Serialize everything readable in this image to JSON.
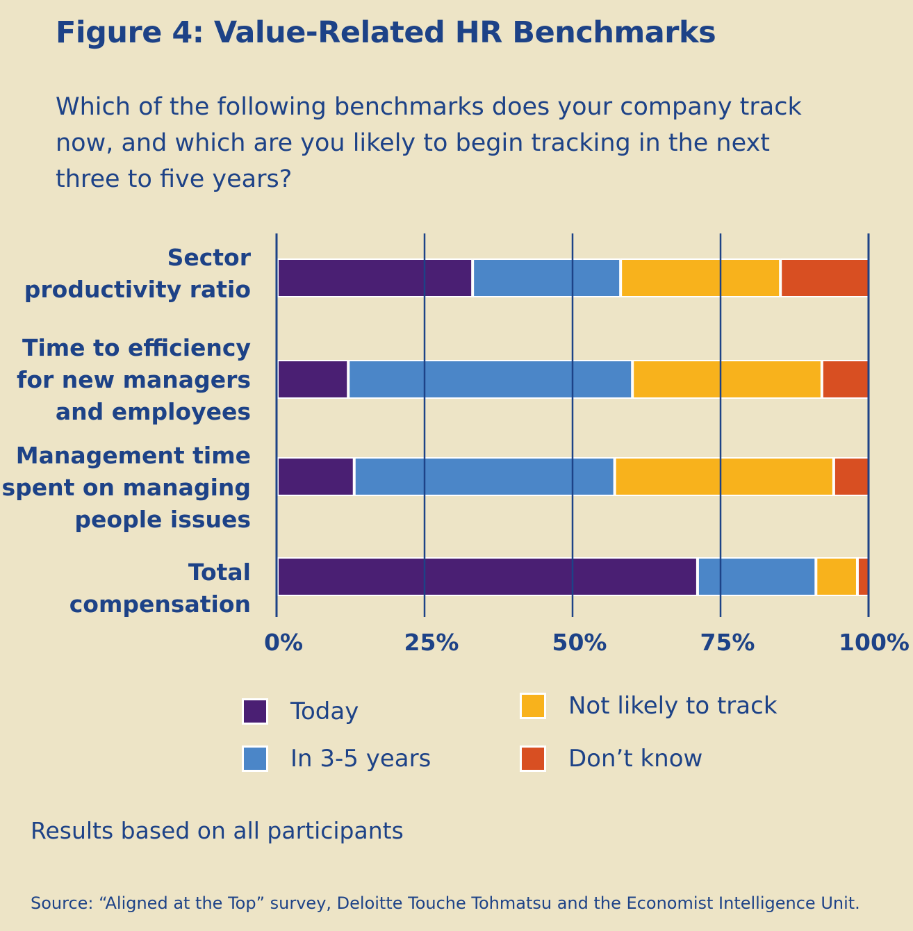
{
  "title": "Figure 4: Value-Related HR Benchmarks",
  "question": "Which of the following benchmarks does your company track now, and which are you likely to begin tracking in the next three to five years?",
  "note": "Results based on all participants",
  "source": "Source: “Aligned at the Top” survey, Deloitte Touche Tohmatsu and the Economist Intelligence Unit.",
  "chart_data": {
    "type": "bar",
    "orientation": "horizontal",
    "stacked": true,
    "categories": [
      [
        "Sector",
        "productivity ratio"
      ],
      [
        "Time to efficiency",
        "for new managers",
        "and employees"
      ],
      [
        "Management time",
        "spent on managing",
        "people issues"
      ],
      [
        "Total",
        "compensation"
      ]
    ],
    "series": [
      {
        "name": "Today",
        "color": "#4a1f73",
        "values": [
          33,
          12,
          13,
          71
        ]
      },
      {
        "name": "In 3-5 years",
        "color": "#4b86c8",
        "values": [
          25,
          48,
          44,
          20
        ]
      },
      {
        "name": "Not likely to track",
        "color": "#f8b21c",
        "values": [
          27,
          32,
          37,
          7
        ]
      },
      {
        "name": "Don’t know",
        "color": "#d84f22",
        "values": [
          15,
          8,
          6,
          2
        ]
      }
    ],
    "xticks": [
      "0%",
      "25%",
      "50%",
      "75%",
      "100%"
    ],
    "xlim": [
      0,
      100
    ],
    "grid": true,
    "legend_position": "bottom"
  }
}
